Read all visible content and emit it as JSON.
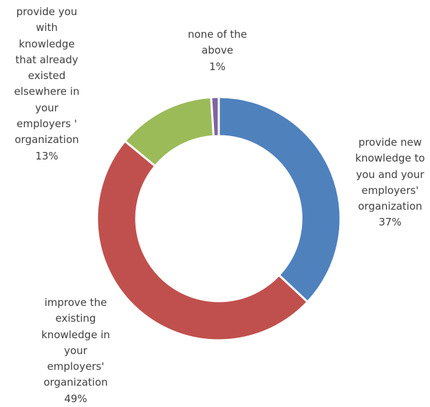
{
  "chart_data": {
    "type": "donut",
    "categories": [
      "provide new knowledge to you and your employers' organization",
      "improve the existing knowledge in your employers' organization",
      "provide you with knowledge that already existed elsewhere in your employers ' organization",
      "none of the above"
    ],
    "values": [
      37,
      49,
      13,
      1
    ],
    "value_labels": [
      "37%",
      "49%",
      "13%",
      "1%"
    ],
    "colors": [
      "#4f81bd",
      "#c0504d",
      "#9bbb59",
      "#8064a2"
    ]
  }
}
